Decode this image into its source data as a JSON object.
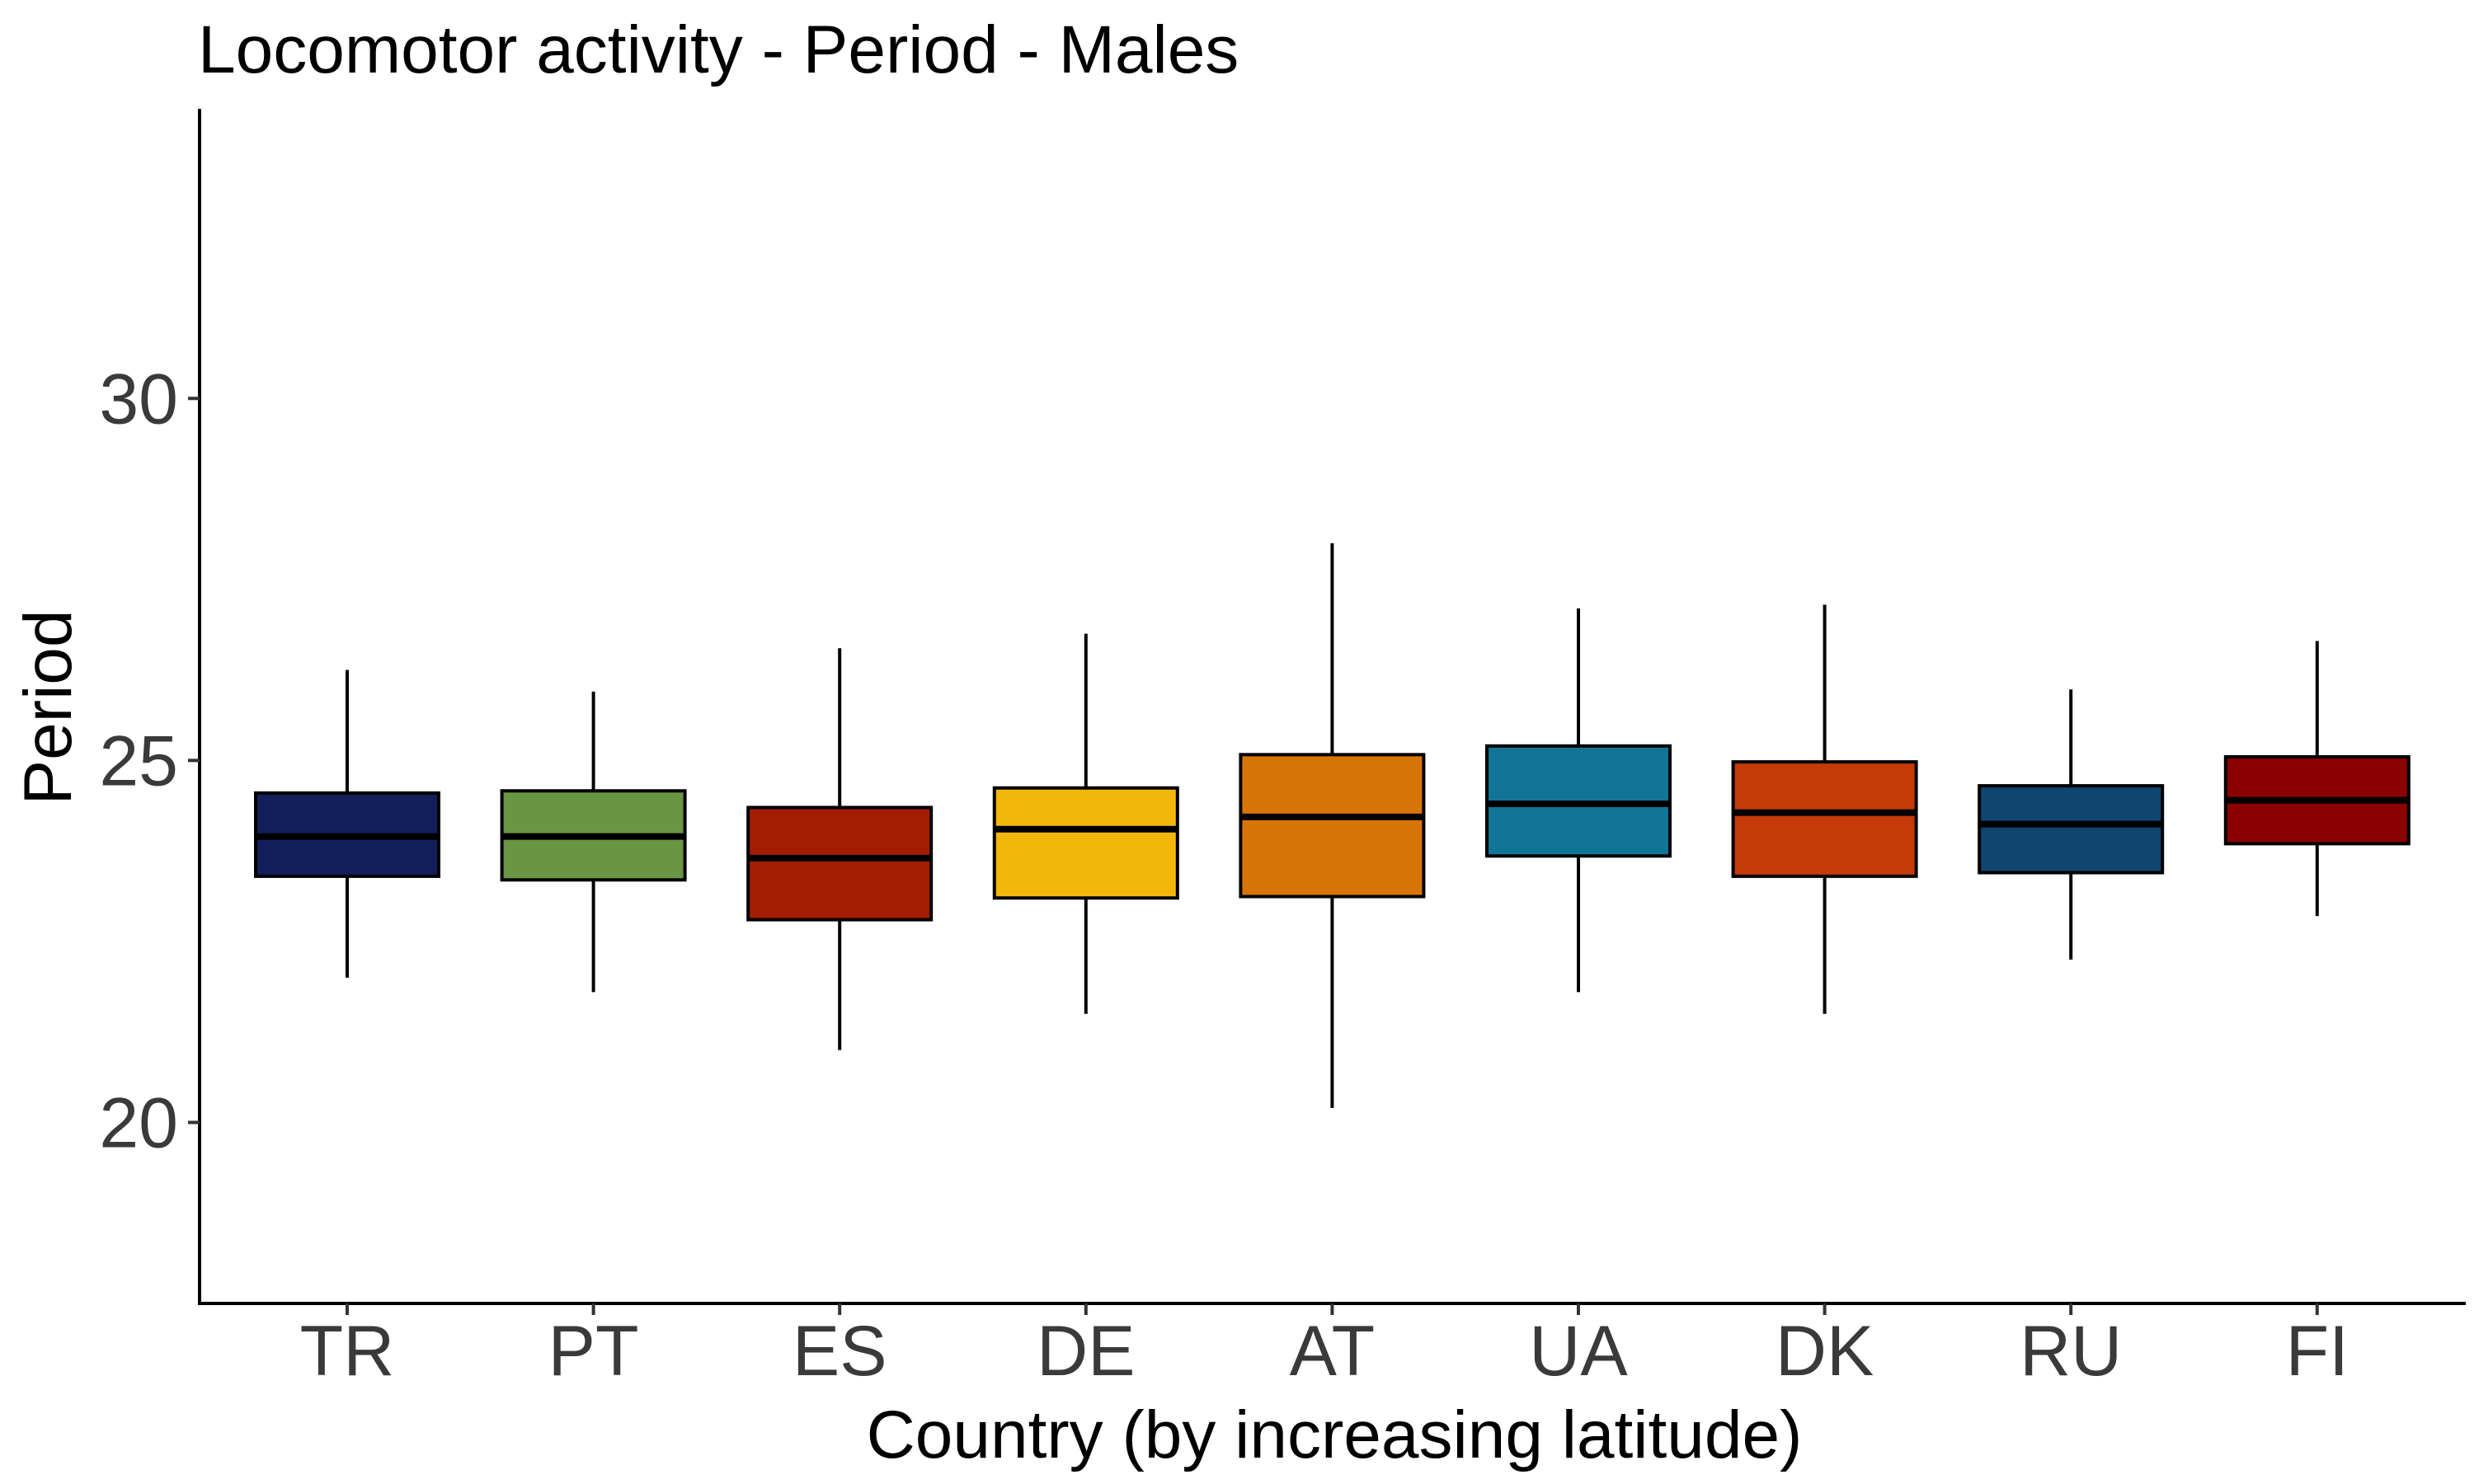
{
  "chart_data": {
    "type": "boxplot",
    "title": "Locomotor activity - Period - Males",
    "xlabel": "Country (by increasing latitude)",
    "ylabel": "Period",
    "ylim": [
      17.5,
      34
    ],
    "yticks": [
      20,
      25,
      30
    ],
    "grid": false,
    "legend": "none",
    "categories": [
      "TR",
      "PT",
      "ES",
      "DE",
      "AT",
      "UA",
      "DK",
      "RU",
      "FI"
    ],
    "boxes": [
      {
        "category": "TR",
        "whisker_low": 22.0,
        "q1": 23.4,
        "median": 23.95,
        "q3": 24.55,
        "whisker_high": 26.25,
        "color": "#131f5a"
      },
      {
        "category": "PT",
        "whisker_low": 21.8,
        "q1": 23.35,
        "median": 23.95,
        "q3": 24.58,
        "whisker_high": 25.95,
        "color": "#6a9643"
      },
      {
        "category": "ES",
        "whisker_low": 21.0,
        "q1": 22.8,
        "median": 23.65,
        "q3": 24.35,
        "whisker_high": 26.55,
        "color": "#a51c04"
      },
      {
        "category": "DE",
        "whisker_low": 21.5,
        "q1": 23.1,
        "median": 24.05,
        "q3": 24.62,
        "whisker_high": 26.75,
        "color": "#f3b70c"
      },
      {
        "category": "AT",
        "whisker_low": 20.2,
        "q1": 23.12,
        "median": 24.22,
        "q3": 25.08,
        "whisker_high": 28.0,
        "color": "#d87508"
      },
      {
        "category": "UA",
        "whisker_low": 21.8,
        "q1": 23.68,
        "median": 24.4,
        "q3": 25.2,
        "whisker_high": 27.1,
        "color": "#117598"
      },
      {
        "category": "DK",
        "whisker_low": 21.5,
        "q1": 23.4,
        "median": 24.28,
        "q3": 24.98,
        "whisker_high": 27.15,
        "color": "#c53a08"
      },
      {
        "category": "RU",
        "whisker_low": 22.25,
        "q1": 23.45,
        "median": 24.12,
        "q3": 24.65,
        "whisker_high": 25.98,
        "color": "#10456f"
      },
      {
        "category": "FI",
        "whisker_low": 22.85,
        "q1": 23.85,
        "median": 24.45,
        "q3": 25.05,
        "whisker_high": 26.65,
        "color": "#8b0000"
      }
    ]
  }
}
